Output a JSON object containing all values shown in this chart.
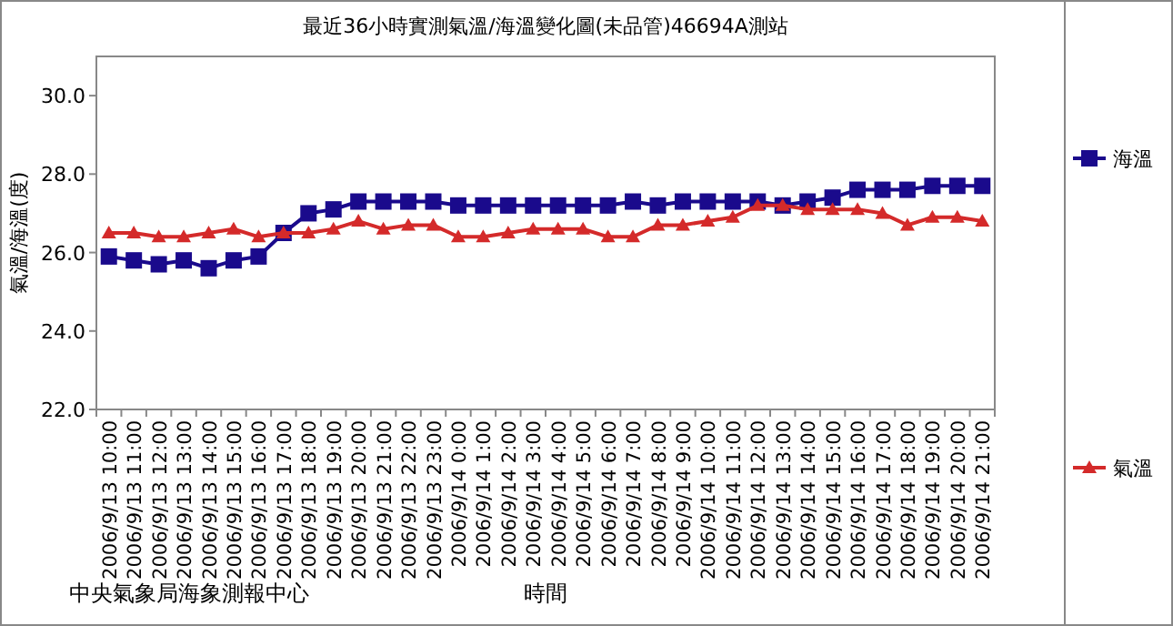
{
  "chart_data": {
    "type": "line",
    "title": "最近36小時實測氣溫/海溫變化圖(未品管)46694A測站",
    "xlabel": "時間",
    "ylabel": "氣溫/海溫(度)",
    "annotations": [
      "中央氣象局海象測報中心"
    ],
    "categories": [
      "2006/9/13 10:00",
      "2006/9/13 11:00",
      "2006/9/13 12:00",
      "2006/9/13 13:00",
      "2006/9/13 14:00",
      "2006/9/13 15:00",
      "2006/9/13 16:00",
      "2006/9/13 17:00",
      "2006/9/13 18:00",
      "2006/9/13 19:00",
      "2006/9/13 20:00",
      "2006/9/13 21:00",
      "2006/9/13 22:00",
      "2006/9/13 23:00",
      "2006/9/14 0:00",
      "2006/9/14 1:00",
      "2006/9/14 2:00",
      "2006/9/14 3:00",
      "2006/9/14 4:00",
      "2006/9/14 5:00",
      "2006/9/14 6:00",
      "2006/9/14 7:00",
      "2006/9/14 8:00",
      "2006/9/14 9:00",
      "2006/9/14 10:00",
      "2006/9/14 11:00",
      "2006/9/14 12:00",
      "2006/9/14 13:00",
      "2006/9/14 14:00",
      "2006/9/14 15:00",
      "2006/9/14 16:00",
      "2006/9/14 17:00",
      "2006/9/14 18:00",
      "2006/9/14 19:00",
      "2006/9/14 20:00",
      "2006/9/14 21:00"
    ],
    "series": [
      {
        "name": "海溫",
        "color": "#1a0a8c",
        "marker": "square",
        "values": [
          25.9,
          25.8,
          25.7,
          25.8,
          25.6,
          25.8,
          25.9,
          26.5,
          27.0,
          27.1,
          27.3,
          27.3,
          27.3,
          27.3,
          27.2,
          27.2,
          27.2,
          27.2,
          27.2,
          27.2,
          27.2,
          27.3,
          27.2,
          27.3,
          27.3,
          27.3,
          27.3,
          27.2,
          27.3,
          27.4,
          27.6,
          27.6,
          27.6,
          27.7,
          27.7,
          27.7
        ]
      },
      {
        "name": "氣溫",
        "color": "#d42a2a",
        "marker": "triangle",
        "values": [
          26.5,
          26.5,
          26.4,
          26.4,
          26.5,
          26.6,
          26.4,
          26.5,
          26.5,
          26.6,
          26.8,
          26.6,
          26.7,
          26.7,
          26.4,
          26.4,
          26.5,
          26.6,
          26.6,
          26.6,
          26.4,
          26.4,
          26.7,
          26.7,
          26.8,
          26.9,
          27.2,
          27.2,
          27.1,
          27.1,
          27.1,
          27.0,
          26.7,
          26.9,
          26.9,
          26.8
        ]
      }
    ],
    "ylim": [
      22,
      31
    ],
    "yticks": [
      {
        "value": 22,
        "label": "22.0"
      },
      {
        "value": 24,
        "label": "24.0"
      },
      {
        "value": 26,
        "label": "26.0"
      },
      {
        "value": 28,
        "label": "28.0"
      },
      {
        "value": 30,
        "label": "30.0"
      }
    ],
    "grid": false,
    "legend": "right",
    "line_style": "solid"
  }
}
